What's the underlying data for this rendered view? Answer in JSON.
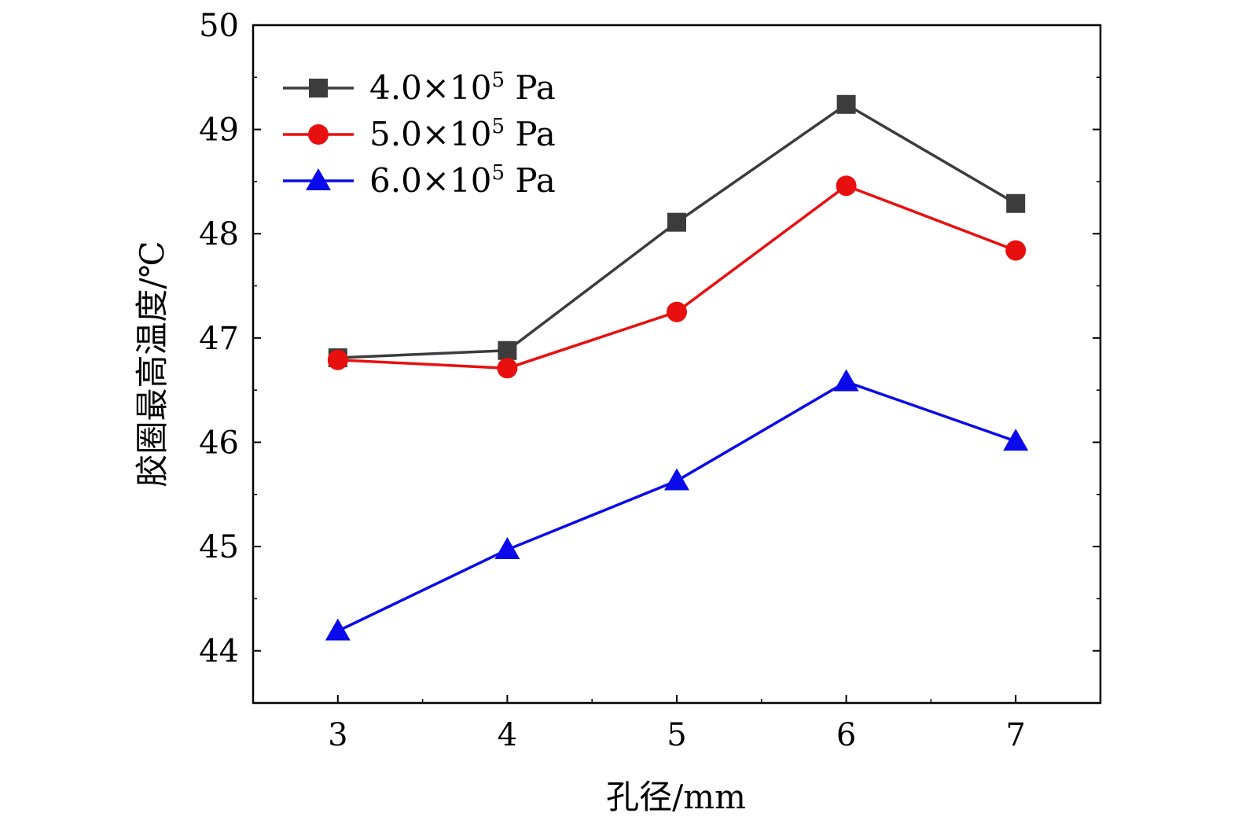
{
  "chart_data": {
    "type": "line",
    "x": [
      3,
      4,
      5,
      6,
      7
    ],
    "xlabel": "孔径/mm",
    "ylabel": "胶圈最高温度/℃",
    "xlim": [
      2.5,
      7.5
    ],
    "ylim": [
      43.5,
      50
    ],
    "xticks": [
      "3",
      "4",
      "5",
      "6",
      "7"
    ],
    "yticks": [
      "44",
      "45",
      "46",
      "47",
      "48",
      "49",
      "50"
    ],
    "grid": false,
    "legend_position": "top-left",
    "series": [
      {
        "legend_prefix": "4.0×10",
        "legend_exp": "5",
        "legend_unit": " Pa",
        "color": "#3c3c3c",
        "marker": "square",
        "values": [
          46.81,
          46.88,
          48.11,
          49.24,
          48.29
        ]
      },
      {
        "legend_prefix": "5.0×10",
        "legend_exp": "5",
        "legend_unit": " Pa",
        "color": "#e8100f",
        "marker": "circle",
        "values": [
          46.79,
          46.71,
          47.25,
          48.46,
          47.84
        ]
      },
      {
        "legend_prefix": "6.0×10",
        "legend_exp": "5",
        "legend_unit": " Pa",
        "color": "#0a0aeb",
        "marker": "triangle",
        "values": [
          44.19,
          44.97,
          45.63,
          46.58,
          46.01
        ]
      }
    ]
  }
}
